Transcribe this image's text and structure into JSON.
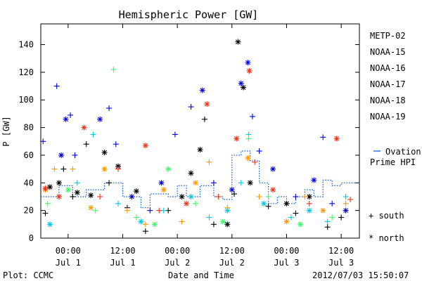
{
  "chart_data": {
    "type": "scatter",
    "title": "Hemispheric Power [GW]",
    "ylabel": "P [GW]",
    "xlabel": "Date and Time",
    "ylim": [
      0,
      155
    ],
    "yticks": [
      0,
      20,
      40,
      60,
      80,
      100,
      120,
      140
    ],
    "xlim": [
      "2012-06-30T18:00",
      "2012-07-03T16:00"
    ],
    "xticks": [
      {
        "t": "2012-07-01T00:00",
        "time": "00:00",
        "date": "Jul 1"
      },
      {
        "t": "2012-07-01T12:00",
        "time": "12:00",
        "date": "Jul 1"
      },
      {
        "t": "2012-07-02T00:00",
        "time": "00:00",
        "date": "Jul 2"
      },
      {
        "t": "2012-07-02T12:00",
        "time": "12:00",
        "date": "Jul 2"
      },
      {
        "t": "2012-07-03T00:00",
        "time": "00:00",
        "date": "Jul 3"
      },
      {
        "t": "2012-07-03T12:00",
        "time": "12:00",
        "date": "Jul 3"
      }
    ],
    "grid": false,
    "legend_position": "right",
    "marker_key": {
      "plus": "+ south",
      "asterisk": "* north"
    },
    "series": [
      {
        "name": "METP-02",
        "color": "#000000",
        "points": [
          {
            "x": "2012-06-30T19:00",
            "y": 18,
            "m": "plus"
          },
          {
            "x": "2012-06-30T20:00",
            "y": 37,
            "m": "asterisk"
          },
          {
            "x": "2012-06-30T22:00",
            "y": 40,
            "m": "asterisk"
          },
          {
            "x": "2012-06-30T23:00",
            "y": 50,
            "m": "plus"
          },
          {
            "x": "2012-07-01T01:00",
            "y": 30,
            "m": "plus"
          },
          {
            "x": "2012-07-01T02:00",
            "y": 33,
            "m": "asterisk"
          },
          {
            "x": "2012-07-01T04:00",
            "y": 68,
            "m": "plus"
          },
          {
            "x": "2012-07-01T05:00",
            "y": 31,
            "m": "asterisk"
          },
          {
            "x": "2012-07-01T08:00",
            "y": 62,
            "m": "asterisk"
          },
          {
            "x": "2012-07-01T09:00",
            "y": 40,
            "m": "plus"
          },
          {
            "x": "2012-07-01T11:00",
            "y": 52,
            "m": "asterisk"
          },
          {
            "x": "2012-07-01T13:00",
            "y": 22,
            "m": "plus"
          },
          {
            "x": "2012-07-01T15:00",
            "y": 34,
            "m": "asterisk"
          },
          {
            "x": "2012-07-01T17:00",
            "y": 5,
            "m": "plus"
          },
          {
            "x": "2012-07-01T22:00",
            "y": 20,
            "m": "plus"
          },
          {
            "x": "2012-07-02T01:00",
            "y": 30,
            "m": "asterisk"
          },
          {
            "x": "2012-07-02T03:00",
            "y": 47,
            "m": "asterisk"
          },
          {
            "x": "2012-07-02T05:00",
            "y": 64,
            "m": "asterisk"
          },
          {
            "x": "2012-07-02T06:00",
            "y": 86,
            "m": "plus"
          },
          {
            "x": "2012-07-02T08:00",
            "y": 10,
            "m": "plus"
          },
          {
            "x": "2012-07-02T11:00",
            "y": 10,
            "m": "asterisk"
          },
          {
            "x": "2012-07-02T12:30",
            "y": 32,
            "m": "plus"
          },
          {
            "x": "2012-07-02T13:20",
            "y": 142,
            "m": "asterisk"
          },
          {
            "x": "2012-07-02T14:30",
            "y": 109,
            "m": "asterisk"
          },
          {
            "x": "2012-07-02T16:00",
            "y": 40,
            "m": "asterisk"
          },
          {
            "x": "2012-07-02T20:00",
            "y": 23,
            "m": "plus"
          },
          {
            "x": "2012-07-03T00:00",
            "y": 25,
            "m": "asterisk"
          },
          {
            "x": "2012-07-03T02:00",
            "y": 18,
            "m": "plus"
          },
          {
            "x": "2012-07-03T05:00",
            "y": 30,
            "m": "asterisk"
          },
          {
            "x": "2012-07-03T09:00",
            "y": 8,
            "m": "plus"
          },
          {
            "x": "2012-07-03T12:00",
            "y": 15,
            "m": "plus"
          }
        ]
      },
      {
        "name": "NOAA-15",
        "color": "#0000dd",
        "points": [
          {
            "x": "2012-06-30T18:30",
            "y": 70,
            "m": "plus"
          },
          {
            "x": "2012-06-30T21:30",
            "y": 110,
            "m": "plus"
          },
          {
            "x": "2012-06-30T22:30",
            "y": 60,
            "m": "asterisk"
          },
          {
            "x": "2012-06-30T23:30",
            "y": 86,
            "m": "asterisk"
          },
          {
            "x": "2012-07-01T00:30",
            "y": 89,
            "m": "plus"
          },
          {
            "x": "2012-07-01T01:30",
            "y": 60,
            "m": "plus"
          },
          {
            "x": "2012-07-01T07:00",
            "y": 86,
            "m": "asterisk"
          },
          {
            "x": "2012-07-01T09:00",
            "y": 94,
            "m": "plus"
          },
          {
            "x": "2012-07-01T10:30",
            "y": 68,
            "m": "plus"
          },
          {
            "x": "2012-07-01T14:00",
            "y": 30,
            "m": "asterisk"
          },
          {
            "x": "2012-07-01T18:00",
            "y": 20,
            "m": "plus"
          },
          {
            "x": "2012-07-01T20:30",
            "y": 40,
            "m": "asterisk"
          },
          {
            "x": "2012-07-01T23:30",
            "y": 75,
            "m": "plus"
          },
          {
            "x": "2012-07-02T03:00",
            "y": 95,
            "m": "plus"
          },
          {
            "x": "2012-07-02T05:30",
            "y": 107,
            "m": "asterisk"
          },
          {
            "x": "2012-07-02T08:00",
            "y": 40,
            "m": "plus"
          },
          {
            "x": "2012-07-02T12:00",
            "y": 35,
            "m": "asterisk"
          },
          {
            "x": "2012-07-02T14:00",
            "y": 112,
            "m": "asterisk"
          },
          {
            "x": "2012-07-02T15:30",
            "y": 127,
            "m": "asterisk"
          },
          {
            "x": "2012-07-02T16:30",
            "y": 88,
            "m": "plus"
          },
          {
            "x": "2012-07-02T18:00",
            "y": 63,
            "m": "plus"
          },
          {
            "x": "2012-07-02T21:00",
            "y": 50,
            "m": "asterisk"
          },
          {
            "x": "2012-07-03T02:00",
            "y": 30,
            "m": "plus"
          },
          {
            "x": "2012-07-03T06:00",
            "y": 42,
            "m": "asterisk"
          },
          {
            "x": "2012-07-03T08:00",
            "y": 73,
            "m": "plus"
          },
          {
            "x": "2012-07-03T10:00",
            "y": 25,
            "m": "plus"
          },
          {
            "x": "2012-07-03T13:00",
            "y": 20,
            "m": "asterisk"
          }
        ]
      },
      {
        "name": "NOAA-16",
        "color": "#00c8e6",
        "points": [
          {
            "x": "2012-06-30T20:00",
            "y": 10,
            "m": "asterisk"
          },
          {
            "x": "2012-06-30T22:00",
            "y": 30,
            "m": "plus"
          },
          {
            "x": "2012-07-01T02:00",
            "y": 40,
            "m": "plus"
          },
          {
            "x": "2012-07-01T05:30",
            "y": 75,
            "m": "plus"
          },
          {
            "x": "2012-07-01T11:00",
            "y": 25,
            "m": "plus"
          },
          {
            "x": "2012-07-01T16:00",
            "y": 12,
            "m": "asterisk"
          },
          {
            "x": "2012-07-01T21:00",
            "y": 20,
            "m": "plus"
          },
          {
            "x": "2012-07-02T03:00",
            "y": 30,
            "m": "asterisk"
          },
          {
            "x": "2012-07-02T07:00",
            "y": 15,
            "m": "plus"
          },
          {
            "x": "2012-07-02T11:00",
            "y": 20,
            "m": "asterisk"
          },
          {
            "x": "2012-07-02T14:00",
            "y": 40,
            "m": "plus"
          },
          {
            "x": "2012-07-02T15:40",
            "y": 75,
            "m": "plus"
          },
          {
            "x": "2012-07-02T19:00",
            "y": 25,
            "m": "asterisk"
          },
          {
            "x": "2012-07-03T01:00",
            "y": 15,
            "m": "plus"
          },
          {
            "x": "2012-07-03T05:00",
            "y": 20,
            "m": "asterisk"
          },
          {
            "x": "2012-07-03T09:00",
            "y": 12,
            "m": "plus"
          },
          {
            "x": "2012-07-03T13:00",
            "y": 30,
            "m": "plus"
          }
        ]
      },
      {
        "name": "NOAA-17",
        "color": "#33ff66",
        "points": [
          {
            "x": "2012-06-30T19:30",
            "y": 25,
            "m": "plus"
          },
          {
            "x": "2012-07-01T00:00",
            "y": 35,
            "m": "asterisk"
          },
          {
            "x": "2012-07-01T06:00",
            "y": 20,
            "m": "plus"
          },
          {
            "x": "2012-07-01T10:00",
            "y": 122,
            "m": "plus"
          },
          {
            "x": "2012-07-01T15:00",
            "y": 15,
            "m": "plus"
          },
          {
            "x": "2012-07-01T19:00",
            "y": 10,
            "m": "asterisk"
          },
          {
            "x": "2012-07-01T22:00",
            "y": 50,
            "m": "asterisk"
          },
          {
            "x": "2012-07-02T04:00",
            "y": 25,
            "m": "plus"
          },
          {
            "x": "2012-07-02T10:00",
            "y": 12,
            "m": "asterisk"
          },
          {
            "x": "2012-07-02T15:40",
            "y": 72,
            "m": "plus"
          },
          {
            "x": "2012-07-02T20:00",
            "y": 30,
            "m": "plus"
          },
          {
            "x": "2012-07-03T03:00",
            "y": 10,
            "m": "asterisk"
          },
          {
            "x": "2012-07-03T10:00",
            "y": 15,
            "m": "plus"
          }
        ]
      },
      {
        "name": "NOAA-18",
        "color": "#ff9900",
        "points": [
          {
            "x": "2012-06-30T19:00",
            "y": 35,
            "m": "asterisk"
          },
          {
            "x": "2012-06-30T21:00",
            "y": 50,
            "m": "plus"
          },
          {
            "x": "2012-07-01T01:00",
            "y": 50,
            "m": "plus"
          },
          {
            "x": "2012-07-01T05:00",
            "y": 22,
            "m": "asterisk"
          },
          {
            "x": "2012-07-01T08:00",
            "y": 50,
            "m": "asterisk"
          },
          {
            "x": "2012-07-01T13:00",
            "y": 20,
            "m": "plus"
          },
          {
            "x": "2012-07-01T17:00",
            "y": 10,
            "m": "plus"
          },
          {
            "x": "2012-07-01T21:00",
            "y": 35,
            "m": "asterisk"
          },
          {
            "x": "2012-07-02T01:00",
            "y": 12,
            "m": "plus"
          },
          {
            "x": "2012-07-02T04:00",
            "y": 40,
            "m": "asterisk"
          },
          {
            "x": "2012-07-02T07:00",
            "y": 55,
            "m": "plus"
          },
          {
            "x": "2012-07-02T11:00",
            "y": 22,
            "m": "plus"
          },
          {
            "x": "2012-07-02T15:30",
            "y": 58,
            "m": "asterisk"
          },
          {
            "x": "2012-07-02T18:00",
            "y": 30,
            "m": "plus"
          },
          {
            "x": "2012-07-03T00:00",
            "y": 12,
            "m": "asterisk"
          },
          {
            "x": "2012-07-03T04:00",
            "y": 30,
            "m": "plus"
          },
          {
            "x": "2012-07-03T08:00",
            "y": 20,
            "m": "asterisk"
          },
          {
            "x": "2012-07-03T13:00",
            "y": 25,
            "m": "plus"
          }
        ]
      },
      {
        "name": "NOAA-19",
        "color": "#e8341c",
        "points": [
          {
            "x": "2012-06-30T19:00",
            "y": 36,
            "m": "asterisk"
          },
          {
            "x": "2012-06-30T22:00",
            "y": 30,
            "m": "asterisk"
          },
          {
            "x": "2012-07-01T03:30",
            "y": 80,
            "m": "asterisk"
          },
          {
            "x": "2012-07-01T07:00",
            "y": 30,
            "m": "plus"
          },
          {
            "x": "2012-07-01T11:00",
            "y": 50,
            "m": "plus"
          },
          {
            "x": "2012-07-01T17:00",
            "y": 67,
            "m": "asterisk"
          },
          {
            "x": "2012-07-01T20:00",
            "y": 20,
            "m": "plus"
          },
          {
            "x": "2012-07-02T02:00",
            "y": 25,
            "m": "asterisk"
          },
          {
            "x": "2012-07-02T06:30",
            "y": 97,
            "m": "asterisk"
          },
          {
            "x": "2012-07-02T09:00",
            "y": 30,
            "m": "plus"
          },
          {
            "x": "2012-07-02T13:00",
            "y": 72,
            "m": "asterisk"
          },
          {
            "x": "2012-07-02T15:50",
            "y": 121,
            "m": "asterisk"
          },
          {
            "x": "2012-07-02T17:00",
            "y": 55,
            "m": "plus"
          },
          {
            "x": "2012-07-02T21:00",
            "y": 35,
            "m": "asterisk"
          },
          {
            "x": "2012-07-03T05:00",
            "y": 25,
            "m": "plus"
          },
          {
            "x": "2012-07-03T11:00",
            "y": 72,
            "m": "asterisk"
          },
          {
            "x": "2012-07-03T14:00",
            "y": 28,
            "m": "plus"
          }
        ]
      }
    ],
    "ovation": {
      "name": "Ovation Prime HPI",
      "color": "#0055cc",
      "style": "dotted-step",
      "points": [
        {
          "x": "2012-06-30T18:00",
          "y": 30
        },
        {
          "x": "2012-06-30T22:00",
          "y": 38
        },
        {
          "x": "2012-07-01T01:00",
          "y": 30
        },
        {
          "x": "2012-07-01T04:00",
          "y": 35
        },
        {
          "x": "2012-07-01T08:00",
          "y": 40
        },
        {
          "x": "2012-07-01T12:00",
          "y": 30
        },
        {
          "x": "2012-07-01T16:00",
          "y": 22
        },
        {
          "x": "2012-07-01T18:00",
          "y": 32
        },
        {
          "x": "2012-07-01T22:00",
          "y": 30
        },
        {
          "x": "2012-07-02T00:00",
          "y": 38
        },
        {
          "x": "2012-07-02T02:00",
          "y": 30
        },
        {
          "x": "2012-07-02T05:00",
          "y": 38
        },
        {
          "x": "2012-07-02T08:00",
          "y": 30
        },
        {
          "x": "2012-07-02T10:00",
          "y": 28
        },
        {
          "x": "2012-07-02T12:00",
          "y": 60
        },
        {
          "x": "2012-07-02T14:00",
          "y": 63
        },
        {
          "x": "2012-07-02T16:00",
          "y": 56
        },
        {
          "x": "2012-07-02T18:00",
          "y": 40
        },
        {
          "x": "2012-07-02T20:00",
          "y": 25
        },
        {
          "x": "2012-07-02T22:00",
          "y": 30
        },
        {
          "x": "2012-07-03T00:00",
          "y": 25
        },
        {
          "x": "2012-07-03T02:00",
          "y": 30
        },
        {
          "x": "2012-07-03T04:00",
          "y": 35
        },
        {
          "x": "2012-07-03T06:00",
          "y": 30
        },
        {
          "x": "2012-07-03T08:00",
          "y": 42
        },
        {
          "x": "2012-07-03T10:00",
          "y": 38
        },
        {
          "x": "2012-07-03T12:00",
          "y": 40
        },
        {
          "x": "2012-07-03T16:00",
          "y": 40
        }
      ]
    }
  },
  "legend": {
    "entries": [
      {
        "label": "METP-02",
        "color": "#000000"
      },
      {
        "label": "NOAA-15",
        "color": "#0000dd"
      },
      {
        "label": "NOAA-16",
        "color": "#00c8e6"
      },
      {
        "label": "NOAA-17",
        "color": "#33ff66"
      },
      {
        "label": "NOAA-18",
        "color": "#ff9900"
      },
      {
        "label": "NOAA-19",
        "color": "#e8341c"
      }
    ],
    "ovation_line1": "Ovation",
    "ovation_line2": "Prime HPI",
    "south_label": "+ south",
    "north_label": "* north"
  },
  "footer": {
    "plot_credit": "Plot: CCMC",
    "timestamp": "2012/07/03 15:50:07"
  }
}
